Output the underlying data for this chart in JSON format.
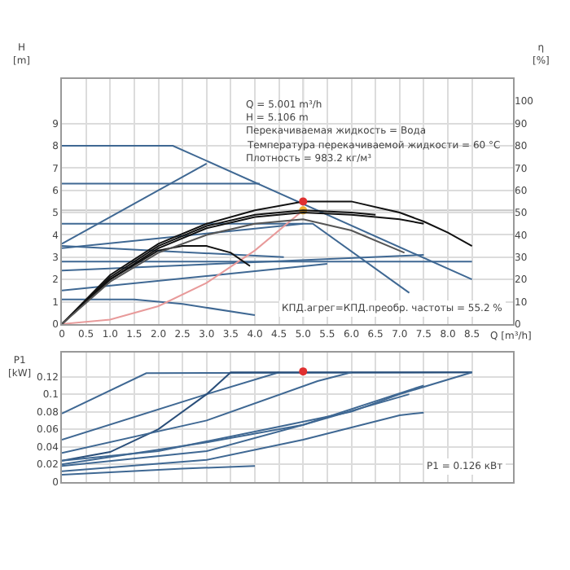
{
  "chart_data": [
    {
      "type": "line",
      "xlabel": "Q [m³/h]",
      "ylabel": "H [m]",
      "y2label": "η [%]",
      "xlim": [
        0,
        9.35
      ],
      "xticks": [
        0,
        0.5,
        {
          "value": 1,
          "label": "1.0"
        },
        1.5,
        {
          "value": 2,
          "label": "2.0"
        },
        2.5,
        {
          "value": 3,
          "label": "3.0"
        },
        3.5,
        {
          "value": 4,
          "label": "4.0"
        },
        4.5,
        {
          "value": 5,
          "label": "5.0"
        },
        5.5,
        {
          "value": 6,
          "label": "6.0"
        },
        6.5,
        {
          "value": 7,
          "label": "7.0"
        },
        7.5,
        {
          "value": 8,
          "label": "8.0"
        },
        8.5
      ],
      "ylim": [
        0,
        11
      ],
      "yticks": [
        0,
        1,
        2,
        3,
        4,
        5,
        6,
        7,
        8,
        9
      ],
      "y2lim": [
        0,
        110
      ],
      "y2ticks": [
        0,
        10,
        20,
        30,
        40,
        50,
        60,
        70,
        80,
        90,
        100
      ],
      "grid": true,
      "line_style": "solid",
      "annotations": [
        "Q = 5.001 m³/h",
        "H = 5.106 m",
        "Перекачиваемая жидкость = Вода",
        "Температура перекачиваемой жидкости = 60 °C",
        "Плотность = 983.2 кг/м³",
        "КПД.агрег=КПД.преобр. частоты = 55.2 %"
      ],
      "ref_lines": [
        {
          "axis": "x",
          "value": 5.0,
          "label": null,
          "color": "#b8b8b8"
        },
        {
          "axis": "y",
          "value": 5.1,
          "label": null,
          "color": "#c8c8c8"
        }
      ],
      "series": [
        {
          "color": "#3f6893",
          "x": [
            0,
            2.3,
            8.5
          ],
          "values": [
            8,
            8,
            2.0
          ]
        },
        {
          "color": "#3f6893",
          "x": [
            0,
            3.0
          ],
          "values": [
            3.6,
            7.2
          ]
        },
        {
          "color": "#3f6893",
          "x": [
            0,
            4.1
          ],
          "values": [
            6.3,
            6.3
          ]
        },
        {
          "color": "#3f6893",
          "x": [
            0,
            5.2,
            7.2
          ],
          "values": [
            4.5,
            4.5,
            1.4
          ]
        },
        {
          "color": "#3f6893",
          "x": [
            0,
            5.0
          ],
          "values": [
            3.4,
            4.5
          ]
        },
        {
          "color": "#3f6893",
          "x": [
            0,
            4.6
          ],
          "values": [
            3.5,
            3.0
          ]
        },
        {
          "color": "#3f6893",
          "x": [
            0,
            8.5
          ],
          "values": [
            2.8,
            2.8
          ]
        },
        {
          "color": "#3f6893",
          "x": [
            0,
            7.5
          ],
          "values": [
            2.4,
            3.1
          ]
        },
        {
          "color": "#3f6893",
          "x": [
            0,
            5.5
          ],
          "values": [
            1.5,
            2.7
          ]
        },
        {
          "color": "#3f6893",
          "x": [
            0,
            1.5,
            2.5,
            4.0
          ],
          "values": [
            1.1,
            1.1,
            0.9,
            0.4
          ]
        },
        {
          "color": "#e89a9a",
          "x": [
            0,
            1,
            2,
            3,
            4,
            5.0
          ],
          "values": [
            0,
            0.2,
            0.8,
            1.85,
            3.3,
            5.1
          ]
        },
        {
          "color": "#111111",
          "axis": "y2",
          "x": [
            0,
            1,
            2,
            3,
            4,
            5,
            6,
            7,
            7.5,
            8,
            8.5
          ],
          "values": [
            0,
            22,
            36,
            45,
            51,
            55,
            55,
            50,
            46,
            41,
            35
          ]
        },
        {
          "color": "#111111",
          "axis": "y2",
          "x": [
            0,
            1,
            2,
            3,
            4,
            5,
            6,
            7,
            7.5
          ],
          "values": [
            0,
            20,
            34,
            43,
            48,
            50,
            49,
            47,
            45
          ]
        },
        {
          "color": "#111111",
          "axis": "y2",
          "x": [
            0,
            1,
            2,
            3,
            4,
            5,
            6,
            6.5
          ],
          "values": [
            0,
            21,
            35,
            44,
            49,
            51,
            50,
            49
          ]
        },
        {
          "color": "#111111",
          "axis": "y2",
          "x": [
            0,
            1,
            2,
            2.5,
            3,
            3.5,
            3.9
          ],
          "values": [
            0,
            20,
            33,
            35,
            35,
            32,
            26
          ]
        },
        {
          "color": "#555555",
          "axis": "y2",
          "x": [
            0,
            1,
            2,
            3,
            4,
            5,
            6,
            7.1
          ],
          "values": [
            0,
            19,
            32,
            40,
            45,
            47,
            42,
            32
          ]
        },
        {
          "type": "scatter",
          "marker": "circle",
          "color": "#e03030",
          "axis": "y2",
          "x": [
            5.0
          ],
          "values": [
            55
          ]
        },
        {
          "type": "scatter",
          "marker": "circle",
          "color": "#f0b030",
          "x": [
            5.0
          ],
          "values": [
            5.1
          ]
        }
      ]
    },
    {
      "type": "line",
      "ylabel": "P1 [kW]",
      "tick_labels": "y",
      "xlim": [
        0,
        9.35
      ],
      "xticks": [
        0,
        0.5,
        1.0,
        1.5,
        2.0,
        2.5,
        3.0,
        3.5,
        4.0,
        4.5,
        5.0,
        5.5,
        6.0,
        6.5,
        7.0,
        7.5,
        8.0,
        8.5
      ],
      "ylim": [
        0,
        0.148
      ],
      "yticks": [
        0,
        0.02,
        0.04,
        0.06,
        0.08,
        0.1,
        0.12
      ],
      "grid": true,
      "line_style": "solid",
      "annotations": [
        "P1 = 0.126 кВт"
      ],
      "series": [
        {
          "color": "#3f6893",
          "x": [
            0,
            1.75,
            8.5
          ],
          "values": [
            0.078,
            0.124,
            0.125
          ]
        },
        {
          "color": "#3f6893",
          "x": [
            0,
            3.0,
            4.5
          ],
          "values": [
            0.048,
            0.1,
            0.125
          ]
        },
        {
          "color": "#2a4f7a",
          "x": [
            0,
            1,
            2,
            3,
            3.5,
            8.5
          ],
          "values": [
            0.024,
            0.034,
            0.06,
            0.1,
            0.125,
            0.125
          ]
        },
        {
          "color": "#3f6893",
          "x": [
            0,
            3,
            5.3,
            6.0
          ],
          "values": [
            0.033,
            0.07,
            0.115,
            0.125
          ]
        },
        {
          "color": "#3f6893",
          "x": [
            0,
            2,
            4.5,
            6,
            7,
            8.5
          ],
          "values": [
            0.024,
            0.035,
            0.063,
            0.08,
            0.1,
            0.125
          ]
        },
        {
          "color": "#3f6893",
          "x": [
            0,
            3,
            5,
            7.2
          ],
          "values": [
            0.02,
            0.045,
            0.065,
            0.1
          ]
        },
        {
          "color": "#3f6893",
          "x": [
            0,
            3,
            5,
            7.5
          ],
          "values": [
            0.018,
            0.035,
            0.065,
            0.11
          ]
        },
        {
          "color": "#3f6893",
          "x": [
            0,
            3,
            5,
            7,
            7.5
          ],
          "values": [
            0.012,
            0.025,
            0.048,
            0.076,
            0.079
          ]
        },
        {
          "color": "#3f6893",
          "x": [
            0,
            2.5,
            4.0
          ],
          "values": [
            0.008,
            0.015,
            0.018
          ]
        },
        {
          "type": "scatter",
          "marker": "circle",
          "color": "#e03030",
          "x": [
            5.0
          ],
          "values": [
            0.126
          ]
        }
      ]
    }
  ]
}
